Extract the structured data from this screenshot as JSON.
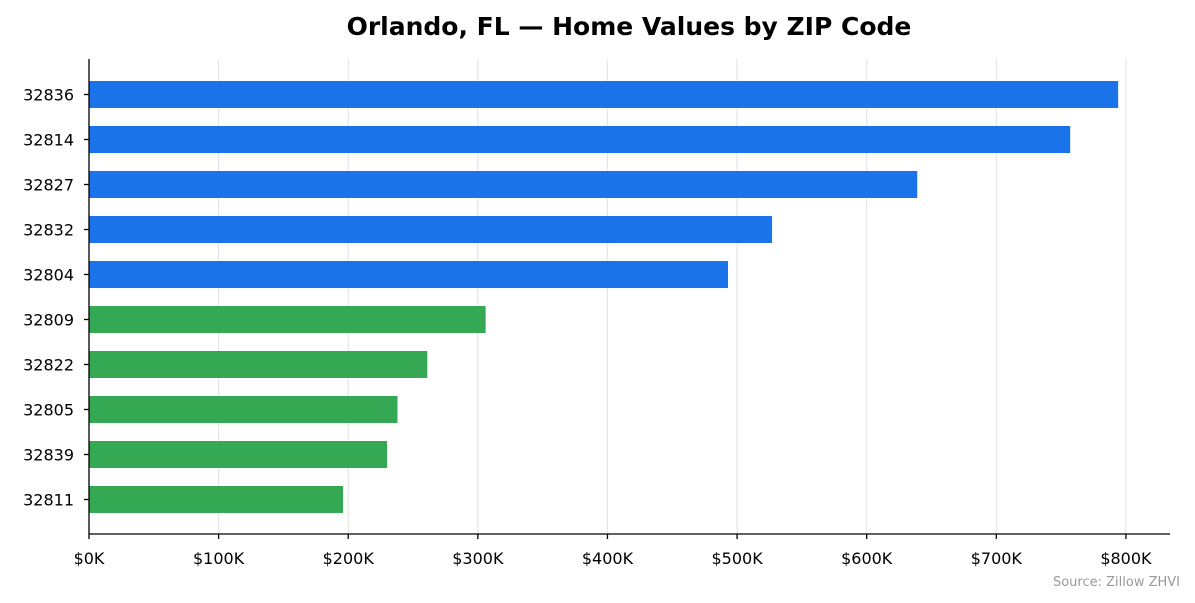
{
  "chart_data": {
    "type": "bar",
    "orientation": "horizontal",
    "title": "Orlando, FL — Home Values by ZIP Code",
    "xlabel": "",
    "ylabel": "",
    "categories": [
      "32836",
      "32814",
      "32827",
      "32832",
      "32804",
      "32809",
      "32822",
      "32805",
      "32839",
      "32811"
    ],
    "values": [
      794000,
      757000,
      639000,
      527000,
      493000,
      306000,
      261000,
      238000,
      230000,
      196000
    ],
    "bar_colors": [
      "#1a73e8",
      "#1a73e8",
      "#1a73e8",
      "#1a73e8",
      "#1a73e8",
      "#34a853",
      "#34a853",
      "#34a853",
      "#34a853",
      "#34a853"
    ],
    "xlim": [
      0,
      834000
    ],
    "xticks": [
      0,
      100000,
      200000,
      300000,
      400000,
      500000,
      600000,
      700000,
      800000
    ],
    "xtick_labels": [
      "$0K",
      "$100K",
      "$200K",
      "$300K",
      "$400K",
      "$500K",
      "$600K",
      "$700K",
      "$800K"
    ],
    "grid": "vertical",
    "source": "Source: Zillow ZHVI"
  }
}
